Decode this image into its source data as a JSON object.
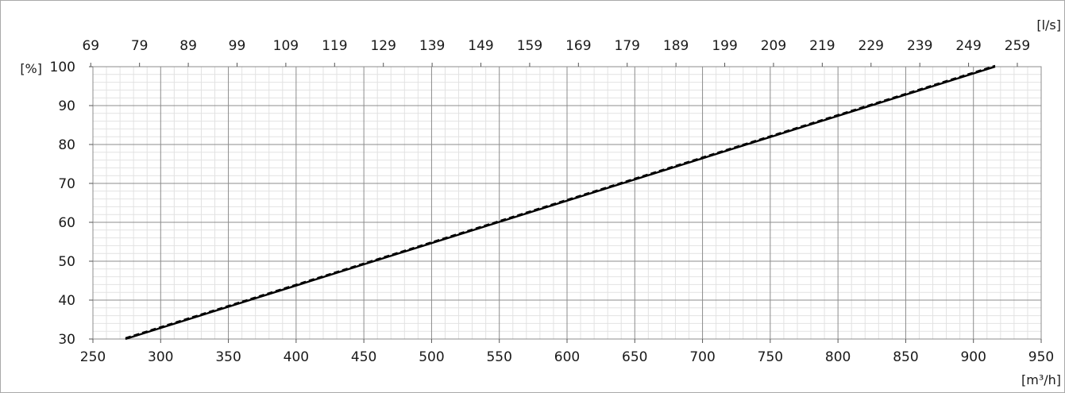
{
  "chart_data": {
    "type": "line",
    "title": "",
    "xlabel": "[m³/h]",
    "ylabel": "[%]",
    "x2label": "[l/s]",
    "xlim": [
      250,
      950
    ],
    "ylim": [
      30,
      100
    ],
    "x_ticks": [
      "250",
      "300",
      "350",
      "400",
      "450",
      "500",
      "550",
      "600",
      "650",
      "700",
      "750",
      "800",
      "850",
      "900",
      "950"
    ],
    "x2_ticks": [
      "69",
      "79",
      "89",
      "99",
      "109",
      "119",
      "129",
      "139",
      "149",
      "159",
      "169",
      "179",
      "189",
      "199",
      "209",
      "219",
      "229",
      "239",
      "249",
      "259"
    ],
    "y_ticks": [
      "30",
      "40",
      "50",
      "60",
      "70",
      "80",
      "90",
      "100"
    ],
    "grid": true,
    "series": [
      {
        "style": "solid",
        "x": [
          274,
          916
        ],
        "y": [
          30,
          100
        ]
      },
      {
        "style": "dashed",
        "x": [
          274,
          916
        ],
        "y": [
          30,
          100
        ]
      }
    ],
    "colors": {
      "line": "#000000",
      "major_grid": "#8c8c8c",
      "minor_grid": "#e2e2e2",
      "frame": "#a9a9a9"
    }
  }
}
